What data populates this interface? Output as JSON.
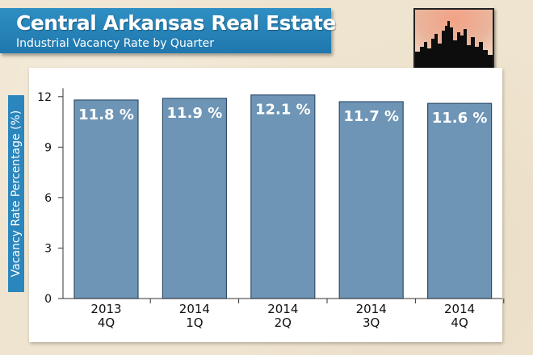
{
  "header": {
    "title": "Central Arkansas Real Estate",
    "subtitle": "Industrial Vacancy Rate by Quarter"
  },
  "logo": {
    "icon": "city-skyline-icon"
  },
  "colors": {
    "banner": "#1f77ad",
    "bar_fill": "#6e95b5",
    "bar_border": "#2f4f6a",
    "panel": "#ffffff"
  },
  "chart_data": {
    "type": "bar",
    "title": "Industrial Vacancy Rate by Quarter",
    "ylabel": "Vacancy Rate Percentage (%)",
    "xlabel": "",
    "ylim": [
      0,
      12.5
    ],
    "yticks": [
      0,
      3,
      6,
      9,
      12
    ],
    "categories": [
      [
        "2013",
        "4Q"
      ],
      [
        "2014",
        "1Q"
      ],
      [
        "2014",
        "2Q"
      ],
      [
        "2014",
        "3Q"
      ],
      [
        "2014",
        "4Q"
      ]
    ],
    "values": [
      11.8,
      11.9,
      12.1,
      11.7,
      11.6
    ],
    "data_labels": [
      "11.8 %",
      "11.9 %",
      "12.1 %",
      "11.7 %",
      "11.6 %"
    ],
    "grid": false,
    "legend": "none"
  }
}
